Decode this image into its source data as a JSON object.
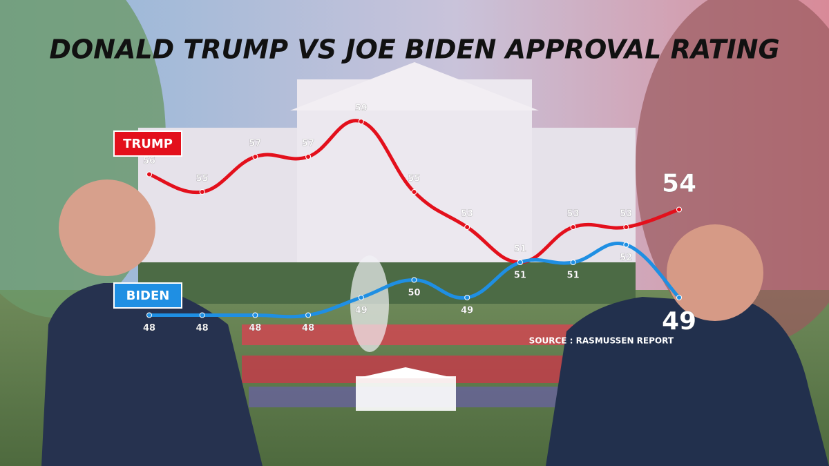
{
  "chart_data": {
    "type": "line",
    "title": "DONALD TRUMP VS JOE BIDEN APPROVAL RATING",
    "source": "SOURCE : RASMUSSEN REPORT",
    "ylim": [
      46,
      61
    ],
    "series": [
      {
        "name": "TRUMP",
        "color": "#e3101c",
        "values": [
          56,
          55,
          57,
          57,
          59,
          55,
          53,
          51,
          53,
          53,
          54
        ]
      },
      {
        "name": "BIDEN",
        "color": "#1f8fe3",
        "values": [
          48,
          48,
          48,
          48,
          49,
          50,
          49,
          51,
          51,
          52,
          49
        ]
      }
    ]
  }
}
